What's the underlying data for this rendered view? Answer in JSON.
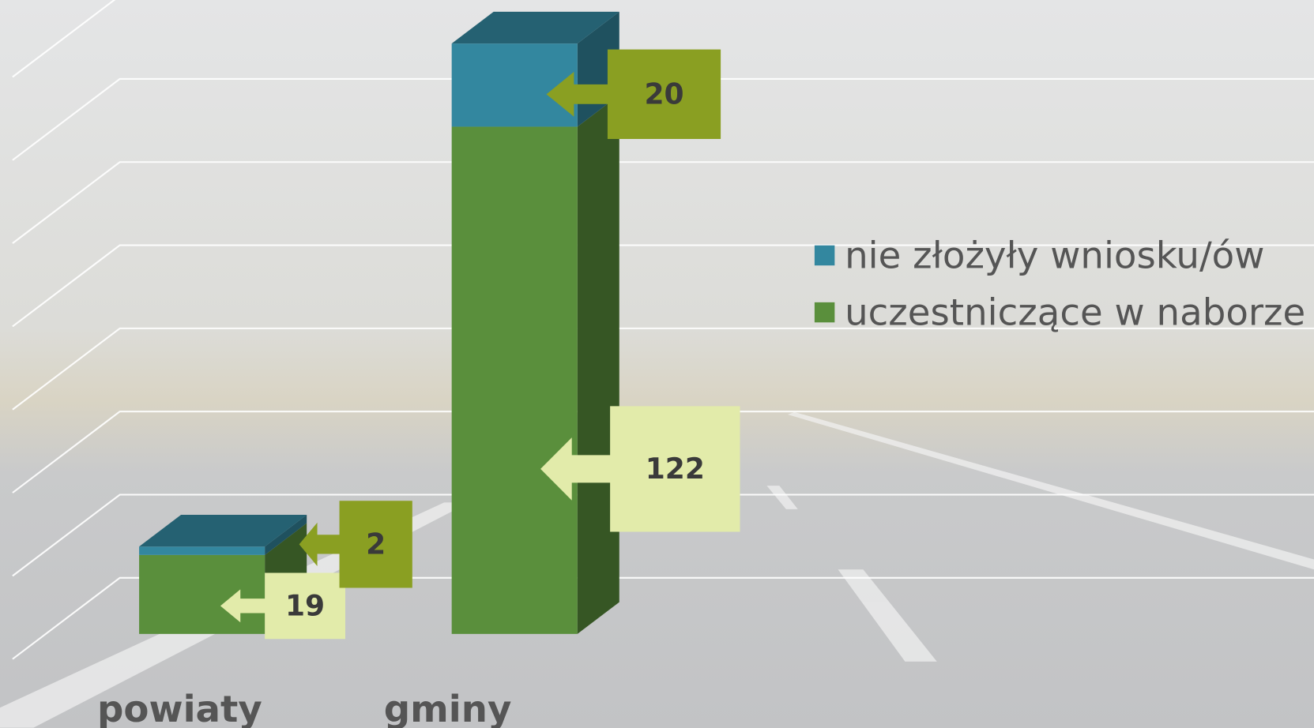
{
  "chart_data": {
    "type": "bar3d_stacked",
    "categories": [
      "powiaty",
      "gminy"
    ],
    "series": [
      {
        "name": "uczestniczące w naborze",
        "color": "#5a8f3c",
        "values": [
          19,
          122
        ]
      },
      {
        "name": "nie złożyły wniosku/ów",
        "color": "#33879f",
        "values": [
          2,
          20
        ]
      }
    ],
    "ylim": [
      0,
      140
    ],
    "yticks": [
      0,
      20,
      40,
      60,
      80,
      100,
      120,
      140
    ],
    "grid": true,
    "legend": "right"
  }
}
